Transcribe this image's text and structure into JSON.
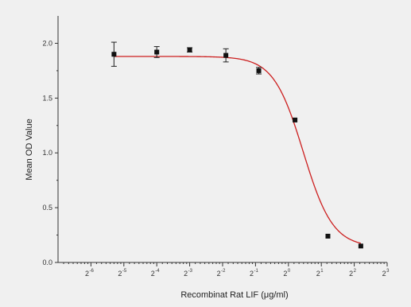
{
  "chart_data": {
    "type": "scatter",
    "title": "",
    "xlabel": "Recombinat Rat LIF (μg/ml)",
    "ylabel": "Mean OD Value",
    "x_scale": "log2",
    "x_tick_exponents": [
      -6,
      -5,
      -4,
      -3,
      -2,
      -1,
      0,
      1,
      2,
      3
    ],
    "x_tick_base": "2",
    "xlim_exponent": [
      -7,
      3
    ],
    "ylim": [
      0,
      2.25
    ],
    "y_ticks": [
      0.0,
      0.5,
      1.0,
      1.5,
      2.0
    ],
    "y_tick_labels": [
      "0.0",
      "0.5",
      "1.0",
      "1.5",
      "2.0"
    ],
    "grid": false,
    "legend": "none",
    "colors": {
      "points": "#111111",
      "fit": "#cc1f1f",
      "axes": "#333333"
    },
    "series": [
      {
        "points": [
          {
            "x_exp": -5.3,
            "y": 1.9,
            "err": 0.11
          },
          {
            "x_exp": -4.0,
            "y": 1.92,
            "err": 0.05
          },
          {
            "x_exp": -3.0,
            "y": 1.94,
            "err": 0.02
          },
          {
            "x_exp": -1.9,
            "y": 1.89,
            "err": 0.06
          },
          {
            "x_exp": -0.9,
            "y": 1.75,
            "err": 0.03
          },
          {
            "x_exp": 0.2,
            "y": 1.3,
            "err": 0.01
          },
          {
            "x_exp": 1.2,
            "y": 0.24,
            "err": 0.01
          },
          {
            "x_exp": 2.2,
            "y": 0.15,
            "err": 0.01
          }
        ]
      }
    ],
    "fit": {
      "model": "4PL",
      "top": 1.88,
      "bottom": 0.14,
      "ec50_exp": 0.45,
      "hill_per_exp": 3.2,
      "x_exp_range": [
        -5.3,
        2.2
      ]
    }
  }
}
